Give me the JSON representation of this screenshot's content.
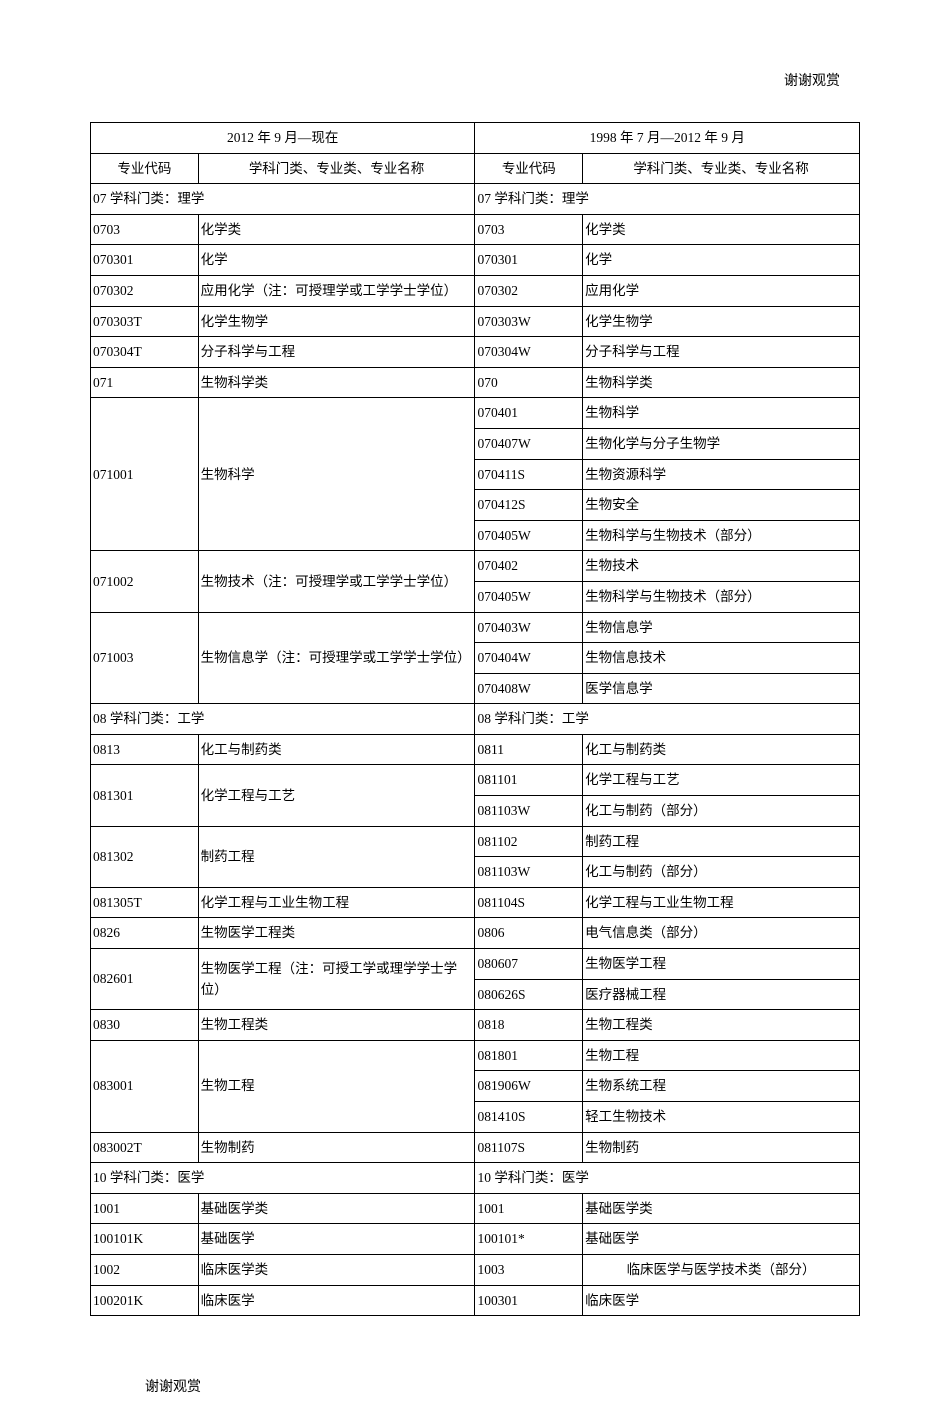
{
  "header_right": "谢谢观赏",
  "footer": "谢谢观赏",
  "period_left": "2012 年 9 月—现在",
  "period_right": "1998 年 7 月—2012 年 9 月",
  "col_code_label": "专业代码",
  "col_name_label": "学科门类、专业类、专业名称",
  "rows": [
    {
      "type": "section",
      "left": "07 学科门类：理学",
      "right": "07 学科门类：理学"
    },
    {
      "type": "pair",
      "l": [
        [
          "0703",
          "化学类"
        ]
      ],
      "r": [
        [
          "0703",
          "化学类"
        ]
      ]
    },
    {
      "type": "pair",
      "l": [
        [
          "070301",
          "化学"
        ]
      ],
      "r": [
        [
          "070301",
          "化学"
        ]
      ]
    },
    {
      "type": "pair",
      "l": [
        [
          "070302",
          "应用化学（注：可授理学或工学学士学位）"
        ]
      ],
      "r": [
        [
          "070302",
          "应用化学"
        ]
      ]
    },
    {
      "type": "pair",
      "l": [
        [
          "070303T",
          "化学生物学"
        ]
      ],
      "r": [
        [
          "070303W",
          "化学生物学"
        ]
      ]
    },
    {
      "type": "pair",
      "l": [
        [
          "070304T",
          "分子科学与工程"
        ]
      ],
      "r": [
        [
          "070304W",
          "分子科学与工程"
        ]
      ]
    },
    {
      "type": "pair",
      "l": [
        [
          "071",
          "生物科学类"
        ]
      ],
      "r": [
        [
          "070",
          "生物科学类"
        ]
      ]
    },
    {
      "type": "multi",
      "lcode": "071001",
      "lname": "生物科学",
      "lspan": 5,
      "r": [
        [
          "070401",
          "生物科学"
        ],
        [
          "070407W",
          "生物化学与分子生物学"
        ],
        [
          "070411S",
          "生物资源科学"
        ],
        [
          "070412S",
          "生物安全"
        ],
        [
          "070405W",
          "生物科学与生物技术（部分）"
        ]
      ]
    },
    {
      "type": "multi",
      "lcode": "071002",
      "lname": "生物技术（注：可授理学或工学学士学位）",
      "lspan": 2,
      "r": [
        [
          "070402",
          "生物技术"
        ],
        [
          "070405W",
          "生物科学与生物技术（部分）"
        ]
      ]
    },
    {
      "type": "multi",
      "lcode": "071003",
      "lname": "生物信息学（注：可授理学或工学学士学位）",
      "lspan": 3,
      "r": [
        [
          "070403W",
          "生物信息学"
        ],
        [
          "070404W",
          "生物信息技术"
        ],
        [
          "070408W",
          "医学信息学"
        ]
      ]
    },
    {
      "type": "section",
      "left": "08 学科门类：工学",
      "right": "08 学科门类：工学"
    },
    {
      "type": "pair",
      "l": [
        [
          "0813",
          "化工与制药类"
        ]
      ],
      "r": [
        [
          "0811",
          "化工与制药类"
        ]
      ]
    },
    {
      "type": "multi",
      "lcode": "081301",
      "lname": "化学工程与工艺",
      "lspan": 2,
      "r": [
        [
          "081101",
          "化学工程与工艺"
        ],
        [
          "081103W",
          "化工与制药（部分）"
        ]
      ]
    },
    {
      "type": "multi",
      "lcode": "081302",
      "lname": "制药工程",
      "lspan": 2,
      "r": [
        [
          "081102",
          "制药工程"
        ],
        [
          "081103W",
          "化工与制药（部分）"
        ]
      ]
    },
    {
      "type": "pair",
      "l": [
        [
          "081305T",
          "化学工程与工业生物工程"
        ]
      ],
      "r": [
        [
          "081104S",
          "化学工程与工业生物工程"
        ]
      ]
    },
    {
      "type": "pair",
      "l": [
        [
          "0826",
          "生物医学工程类"
        ]
      ],
      "r": [
        [
          "0806",
          "电气信息类（部分）"
        ]
      ]
    },
    {
      "type": "multi",
      "lcode": "082601",
      "lname": "生物医学工程（注：可授工学或理学学士学位）",
      "lspan": 2,
      "r": [
        [
          "080607",
          "生物医学工程"
        ],
        [
          "080626S",
          "医疗器械工程"
        ]
      ]
    },
    {
      "type": "pair",
      "l": [
        [
          "0830",
          "生物工程类"
        ]
      ],
      "r": [
        [
          "0818",
          "生物工程类"
        ]
      ]
    },
    {
      "type": "multi",
      "lcode": "083001",
      "lname": "生物工程",
      "lspan": 3,
      "r": [
        [
          "081801",
          "生物工程"
        ],
        [
          "081906W",
          "生物系统工程"
        ],
        [
          "081410S",
          "轻工生物技术"
        ]
      ]
    },
    {
      "type": "pair",
      "l": [
        [
          "083002T",
          "生物制药"
        ]
      ],
      "r": [
        [
          "081107S",
          "生物制药"
        ]
      ]
    },
    {
      "type": "section",
      "left": "10 学科门类：医学",
      "right": "10 学科门类：医学"
    },
    {
      "type": "pair",
      "l": [
        [
          "1001",
          "基础医学类"
        ]
      ],
      "r": [
        [
          "1001",
          "基础医学类"
        ]
      ]
    },
    {
      "type": "pair",
      "l": [
        [
          "100101K",
          "基础医学"
        ]
      ],
      "r": [
        [
          "100101*",
          "基础医学"
        ]
      ]
    },
    {
      "type": "pair",
      "l": [
        [
          "1002",
          "临床医学类"
        ]
      ],
      "r": [
        [
          "1003",
          "临床医学与医学技术类（部分）"
        ]
      ],
      "r_name_center": true
    },
    {
      "type": "pair",
      "l": [
        [
          "100201K",
          "临床医学"
        ]
      ],
      "r": [
        [
          "100301",
          "临床医学"
        ]
      ]
    }
  ]
}
